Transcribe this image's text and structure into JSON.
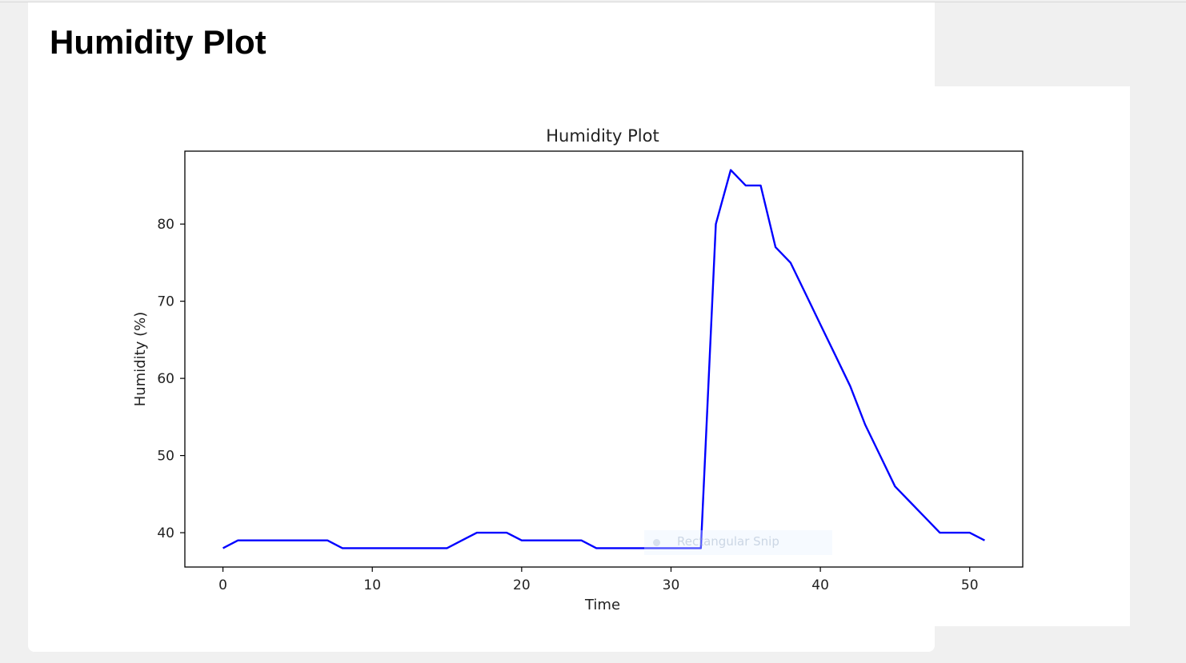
{
  "page": {
    "heading": "Humidity Plot"
  },
  "overlay": {
    "label": "Rectangular Snip"
  },
  "chart_data": {
    "type": "line",
    "title": "Humidity Plot",
    "xlabel": "Time",
    "ylabel": "Humidity (%)",
    "xlim": [
      -2.55,
      53.55
    ],
    "ylim": [
      35.55,
      89.45
    ],
    "xticks": [
      0,
      10,
      20,
      30,
      40,
      50
    ],
    "yticks": [
      40,
      50,
      60,
      70,
      80
    ],
    "grid": false,
    "legend": "none",
    "colors": {
      "line": "#0000ff",
      "axes": "#000000"
    },
    "series": [
      {
        "x": [
          0,
          1,
          2,
          3,
          4,
          5,
          6,
          7,
          8,
          9,
          10,
          11,
          12,
          13,
          14,
          15,
          16,
          17,
          18,
          19,
          20,
          21,
          22,
          23,
          24,
          25,
          26,
          27,
          28,
          29,
          30,
          31,
          32,
          33,
          34,
          35,
          36,
          37,
          38,
          39,
          40,
          41,
          42,
          43,
          44,
          45,
          46,
          47,
          48,
          49,
          50,
          51
        ],
        "y": [
          38,
          39,
          39,
          39,
          39,
          39,
          39,
          39,
          38,
          38,
          38,
          38,
          38,
          38,
          38,
          38,
          39,
          40,
          40,
          40,
          39,
          39,
          39,
          39,
          39,
          38,
          38,
          38,
          38,
          38,
          38,
          38,
          38,
          80,
          87,
          85,
          85,
          77,
          75,
          71,
          67,
          63,
          59,
          54,
          50,
          46,
          44,
          42,
          40,
          40,
          40,
          39
        ]
      }
    ]
  }
}
